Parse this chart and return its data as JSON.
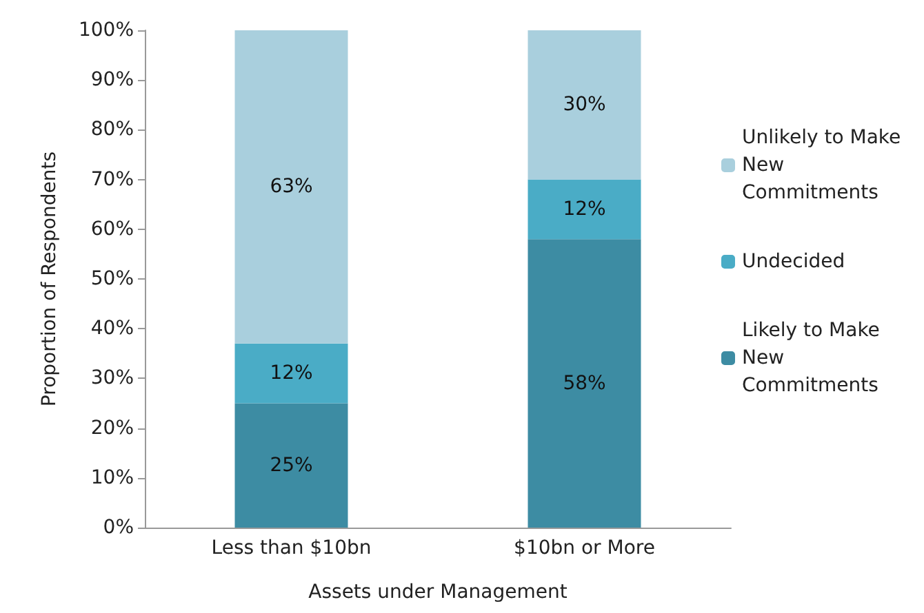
{
  "chart_data": {
    "type": "bar",
    "stacked": true,
    "xlabel": "Assets under Management",
    "ylabel": "Proportion of Respondents",
    "categories": [
      "Less than $10bn",
      "$10bn or More"
    ],
    "series": [
      {
        "name": "Likely to Make New Commitments",
        "color": "#3d8ca3",
        "values": [
          25,
          58
        ],
        "value_labels": [
          "25%",
          "58%"
        ]
      },
      {
        "name": "Undecided",
        "color": "#4aacc6",
        "values": [
          12,
          12
        ],
        "value_labels": [
          "12%",
          "12%"
        ]
      },
      {
        "name": "Unlikely to Make New Commitments",
        "color": "#a9cfdd",
        "values": [
          63,
          30
        ],
        "value_labels": [
          "63%",
          "30%"
        ]
      }
    ],
    "ylim": [
      0,
      100
    ],
    "yticks": [
      {
        "value": 0,
        "label": "0%"
      },
      {
        "value": 10,
        "label": "10%"
      },
      {
        "value": 20,
        "label": "20%"
      },
      {
        "value": 30,
        "label": "30%"
      },
      {
        "value": 40,
        "label": "40%"
      },
      {
        "value": 50,
        "label": "50%"
      },
      {
        "value": 60,
        "label": "60%"
      },
      {
        "value": 70,
        "label": "70%"
      },
      {
        "value": 80,
        "label": "80%"
      },
      {
        "value": 90,
        "label": "90%"
      },
      {
        "value": 100,
        "label": "100%"
      }
    ],
    "grid": false,
    "legend": "right"
  }
}
